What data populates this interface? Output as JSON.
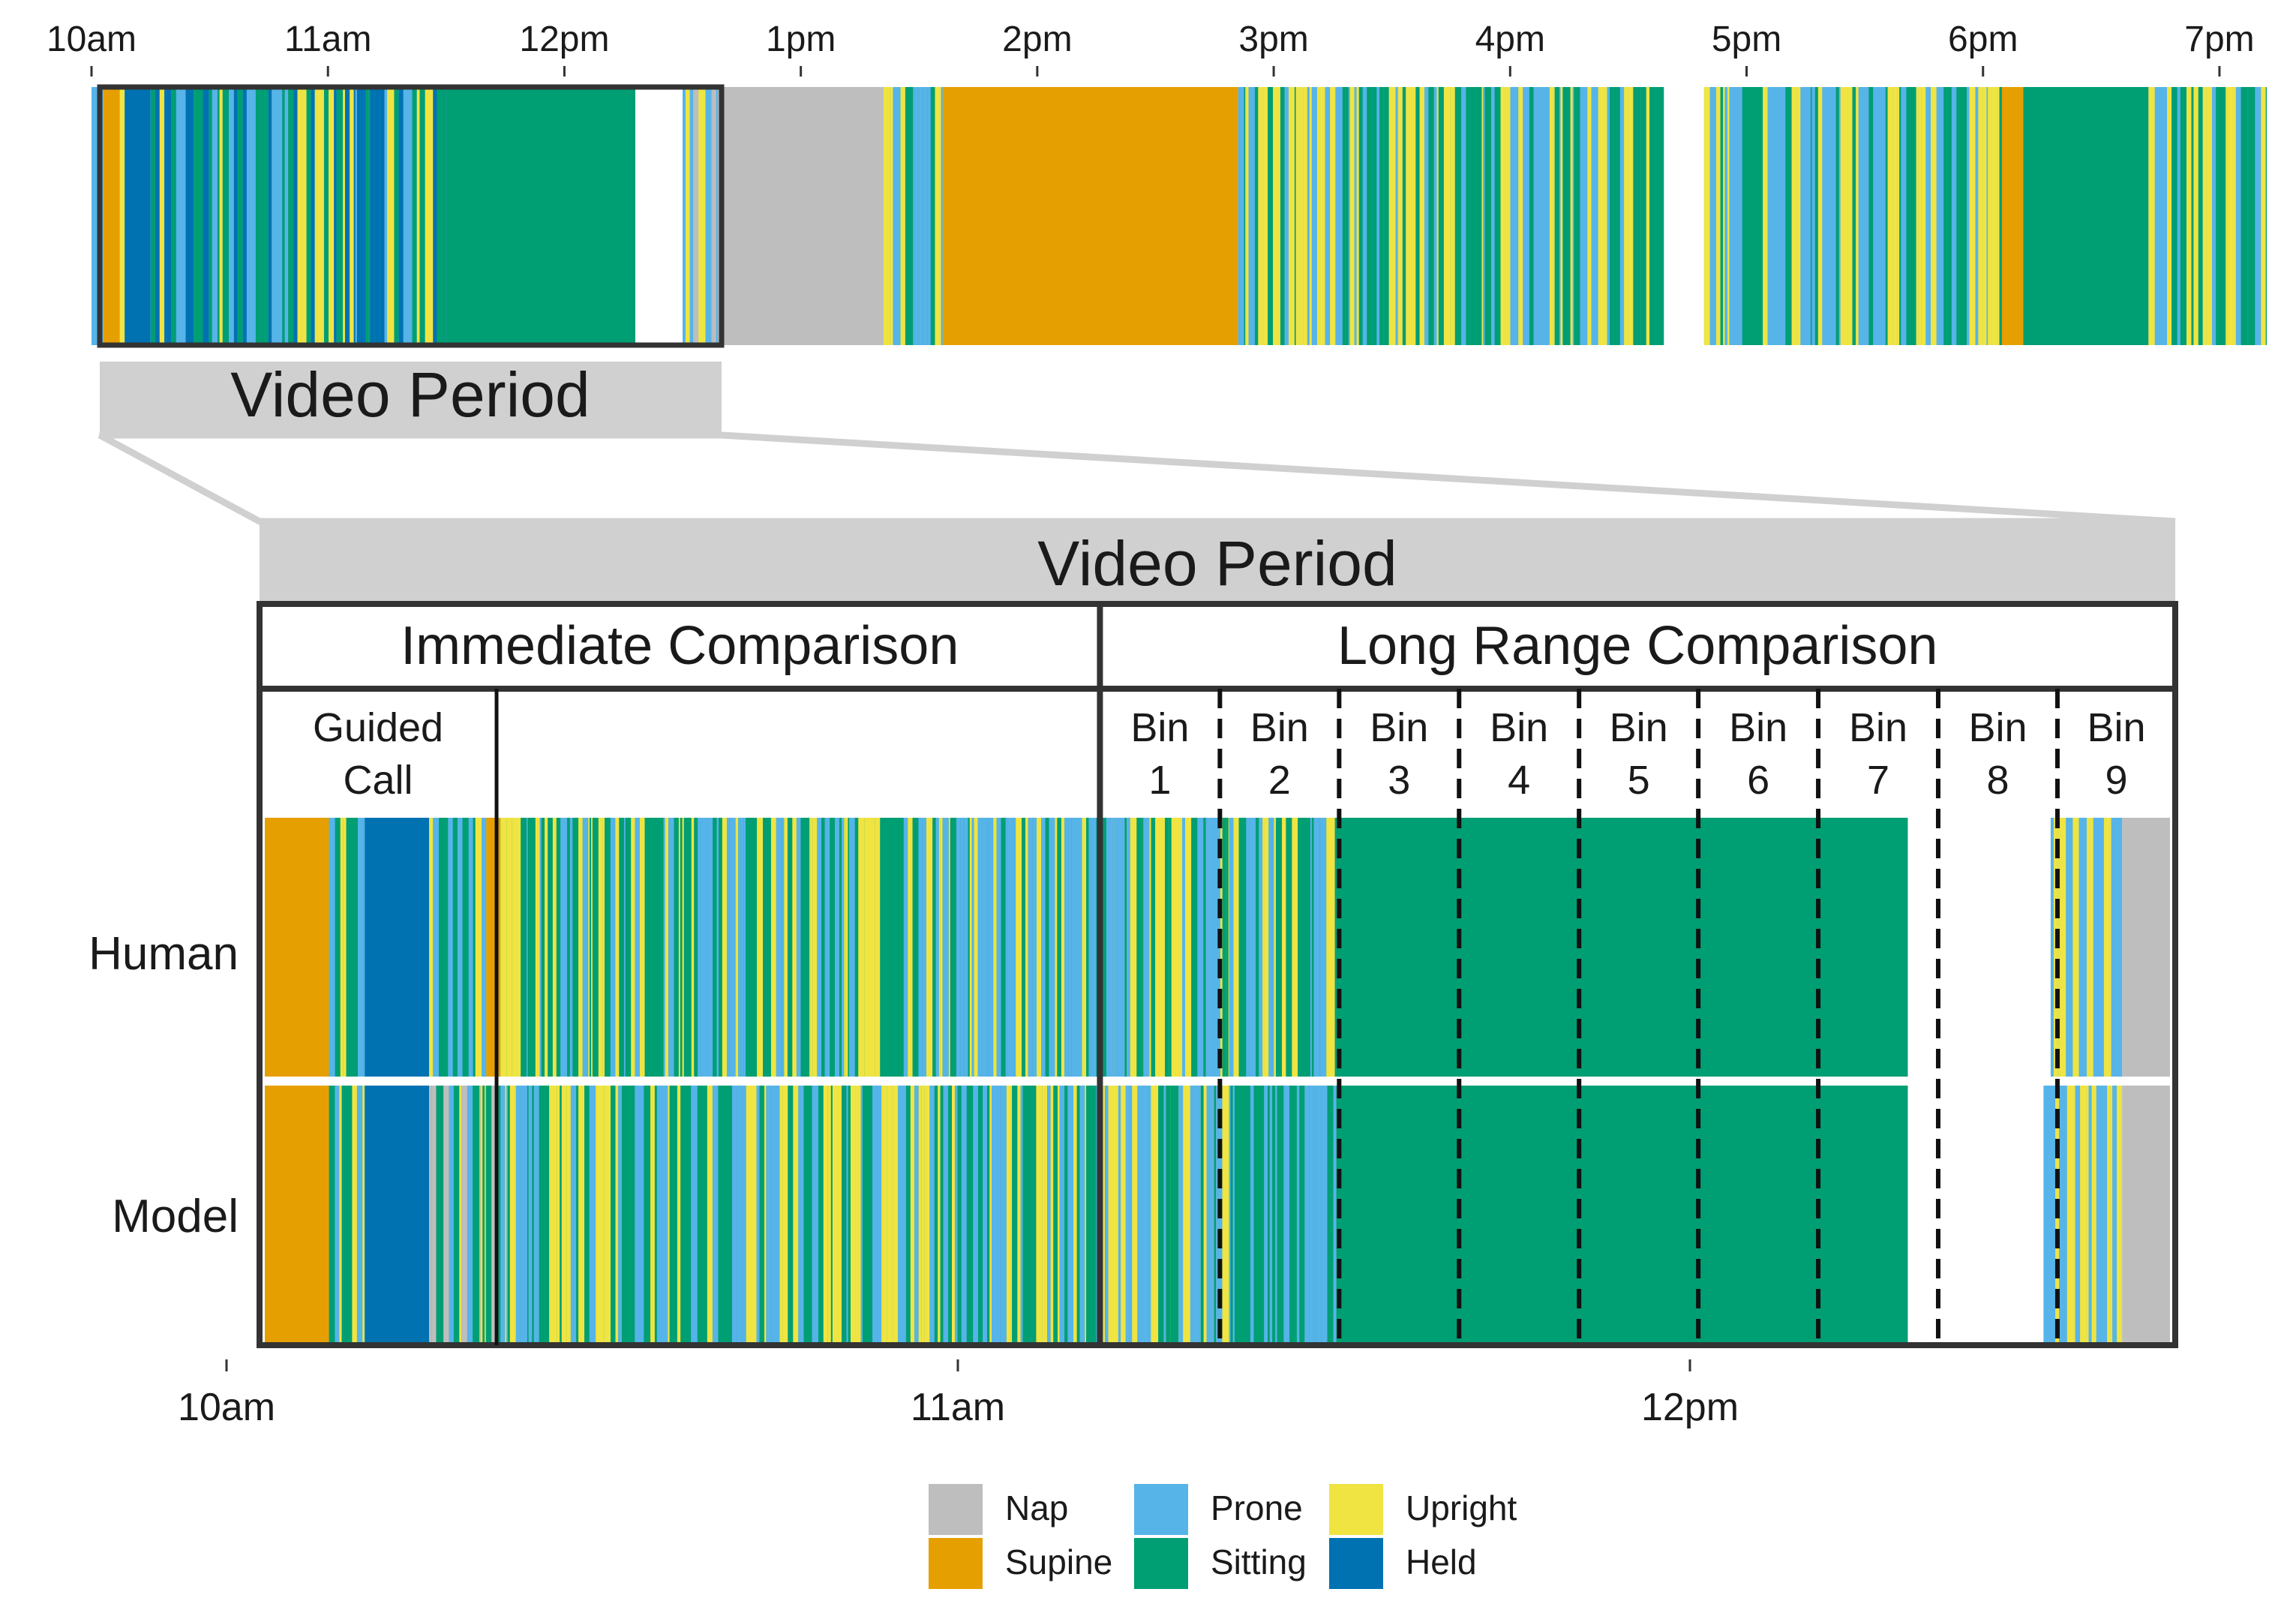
{
  "colors": {
    "Nap": "#BEBEBE",
    "Supine": "#E69F00",
    "Prone": "#56B4E9",
    "Sitting": "#009E73",
    "Upright": "#F0E442",
    "Held": "#0072B2",
    "frame": "#333333",
    "panel": "#D0D0D0"
  },
  "chart_data": [
    {
      "type": "timeline",
      "x_ticks": [
        "10am",
        "11am",
        "12pm",
        "1pm",
        "2pm",
        "3pm",
        "4pm",
        "5pm",
        "6pm",
        "7pm"
      ],
      "xlim_hours": [
        10.0,
        19.2
      ],
      "segments": [
        {
          "start": 10.0,
          "end": 10.05,
          "state": "Prone"
        },
        {
          "start": 10.05,
          "end": 10.12,
          "state": "Supine"
        },
        {
          "start": 10.12,
          "end": 10.14,
          "state": "Upright"
        },
        {
          "start": 10.14,
          "end": 10.25,
          "state": "Held"
        },
        {
          "start": 10.25,
          "end": 11.5,
          "state": "mixed",
          "mix": [
            "Prone",
            "Sitting",
            "Upright",
            "Held"
          ]
        },
        {
          "start": 11.5,
          "end": 12.3,
          "state": "Sitting"
        },
        {
          "start": 12.3,
          "end": 12.5,
          "state": "none"
        },
        {
          "start": 12.5,
          "end": 12.65,
          "state": "mixed",
          "mix": [
            "Prone",
            "Upright",
            "Nap"
          ]
        },
        {
          "start": 12.65,
          "end": 13.35,
          "state": "Nap"
        },
        {
          "start": 13.35,
          "end": 13.6,
          "state": "mixed",
          "mix": [
            "Sitting",
            "Prone",
            "Upright"
          ]
        },
        {
          "start": 13.6,
          "end": 14.85,
          "state": "Supine"
        },
        {
          "start": 14.85,
          "end": 16.65,
          "state": "mixed",
          "mix": [
            "Prone",
            "Sitting",
            "Upright"
          ]
        },
        {
          "start": 16.65,
          "end": 16.82,
          "state": "none"
        },
        {
          "start": 16.82,
          "end": 18.08,
          "state": "mixed",
          "mix": [
            "Prone",
            "Sitting",
            "Upright"
          ]
        },
        {
          "start": 18.08,
          "end": 18.17,
          "state": "Supine"
        },
        {
          "start": 18.17,
          "end": 18.7,
          "state": "Sitting"
        },
        {
          "start": 18.7,
          "end": 19.2,
          "state": "mixed",
          "mix": [
            "Prone",
            "Sitting",
            "Upright"
          ]
        }
      ],
      "highlight": {
        "label": "Video Period",
        "start": 10.02,
        "end": 12.67
      }
    },
    {
      "type": "timeline",
      "title": "Video Period",
      "x_ticks": [
        "10am",
        "11am",
        "12pm"
      ],
      "xlim_hours": [
        10.0,
        12.667
      ],
      "rows": [
        "Human",
        "Model"
      ],
      "sections": [
        {
          "label": "Immediate Comparison",
          "start": 10.0,
          "end": 11.17
        },
        {
          "label": "Long Range Comparison",
          "start": 11.17,
          "end": 12.667
        }
      ],
      "subsections": [
        {
          "label": "Guided Call",
          "start": 10.0,
          "end": 10.33
        },
        {
          "label": "Bin 1",
          "start": 11.17,
          "end": 11.337
        },
        {
          "label": "Bin 2",
          "start": 11.337,
          "end": 11.503
        },
        {
          "label": "Bin 3",
          "start": 11.503,
          "end": 11.67
        },
        {
          "label": "Bin 4",
          "start": 11.67,
          "end": 11.837
        },
        {
          "label": "Bin 5",
          "start": 11.837,
          "end": 12.003
        },
        {
          "label": "Bin 6",
          "start": 12.003,
          "end": 12.17
        },
        {
          "label": "Bin 7",
          "start": 12.17,
          "end": 12.337
        },
        {
          "label": "Bin 8",
          "start": 12.337,
          "end": 12.503
        },
        {
          "label": "Bin 9",
          "start": 12.503,
          "end": 12.667
        }
      ],
      "human_segments": [
        {
          "start": 10.0,
          "end": 10.09,
          "state": "Supine"
        },
        {
          "start": 10.09,
          "end": 10.14,
          "state": "mixed",
          "mix": [
            "Sitting",
            "Upright",
            "Prone"
          ]
        },
        {
          "start": 10.14,
          "end": 10.23,
          "state": "Held"
        },
        {
          "start": 10.23,
          "end": 10.31,
          "state": "mixed",
          "mix": [
            "Sitting",
            "Prone",
            "Upright"
          ]
        },
        {
          "start": 10.31,
          "end": 10.33,
          "state": "Supine"
        },
        {
          "start": 10.33,
          "end": 11.17,
          "state": "mixed",
          "mix": [
            "Sitting",
            "Prone",
            "Upright"
          ]
        },
        {
          "start": 11.17,
          "end": 11.35,
          "state": "mixed",
          "mix": [
            "Upright",
            "Prone",
            "Sitting"
          ]
        },
        {
          "start": 11.35,
          "end": 11.5,
          "state": "mixed",
          "mix": [
            "Sitting",
            "Prone",
            "Upright"
          ]
        },
        {
          "start": 11.5,
          "end": 12.3,
          "state": "Sitting"
        },
        {
          "start": 12.3,
          "end": 12.5,
          "state": "none"
        },
        {
          "start": 12.5,
          "end": 12.6,
          "state": "mixed",
          "mix": [
            "Prone",
            "Upright"
          ]
        },
        {
          "start": 12.6,
          "end": 12.667,
          "state": "Nap"
        }
      ],
      "model_segments": [
        {
          "start": 10.0,
          "end": 10.09,
          "state": "Supine"
        },
        {
          "start": 10.09,
          "end": 10.14,
          "state": "mixed",
          "mix": [
            "Sitting",
            "Upright",
            "Prone"
          ]
        },
        {
          "start": 10.14,
          "end": 10.23,
          "state": "Held"
        },
        {
          "start": 10.23,
          "end": 10.33,
          "state": "mixed",
          "mix": [
            "Sitting",
            "Prone",
            "Upright",
            "Nap"
          ]
        },
        {
          "start": 10.33,
          "end": 11.17,
          "state": "mixed",
          "mix": [
            "Sitting",
            "Prone",
            "Upright"
          ]
        },
        {
          "start": 11.17,
          "end": 11.35,
          "state": "mixed",
          "mix": [
            "Upright",
            "Sitting",
            "Prone"
          ]
        },
        {
          "start": 11.35,
          "end": 11.5,
          "state": "mixed",
          "mix": [
            "Sitting",
            "Prone"
          ]
        },
        {
          "start": 11.5,
          "end": 12.3,
          "state": "Sitting"
        },
        {
          "start": 12.3,
          "end": 12.49,
          "state": "none"
        },
        {
          "start": 12.49,
          "end": 12.6,
          "state": "mixed",
          "mix": [
            "Prone",
            "Upright"
          ]
        },
        {
          "start": 12.6,
          "end": 12.667,
          "state": "Nap"
        }
      ]
    }
  ],
  "legend": {
    "items": [
      {
        "label": "Nap",
        "color": "#BEBEBE"
      },
      {
        "label": "Supine",
        "color": "#E69F00"
      },
      {
        "label": "Prone",
        "color": "#56B4E9"
      },
      {
        "label": "Sitting",
        "color": "#009E73"
      },
      {
        "label": "Upright",
        "color": "#F0E442"
      },
      {
        "label": "Held",
        "color": "#0072B2"
      }
    ]
  }
}
